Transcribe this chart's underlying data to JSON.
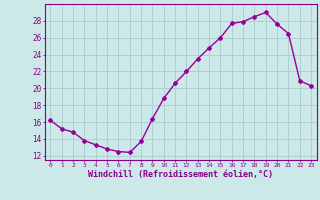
{
  "x": [
    0,
    1,
    2,
    3,
    4,
    5,
    6,
    7,
    8,
    9,
    10,
    11,
    12,
    13,
    14,
    15,
    16,
    17,
    18,
    19,
    20,
    21,
    22,
    23
  ],
  "y": [
    16.2,
    15.2,
    14.8,
    13.8,
    13.3,
    12.8,
    12.5,
    12.4,
    13.7,
    16.4,
    18.8,
    20.6,
    22.0,
    23.5,
    24.8,
    26.0,
    27.7,
    27.9,
    28.5,
    29.0,
    27.6,
    26.5,
    20.9,
    20.3
  ],
  "line_color": "#990099",
  "marker": "D",
  "markersize": 2.0,
  "linewidth": 1.0,
  "xlabel": "Windchill (Refroidissement éolien,°C)",
  "xlabel_fontsize": 6.0,
  "xlim": [
    -0.5,
    23.5
  ],
  "ylim": [
    11.5,
    30.0
  ],
  "yticks": [
    12,
    14,
    16,
    18,
    20,
    22,
    24,
    26,
    28
  ],
  "xticks": [
    0,
    1,
    2,
    3,
    4,
    5,
    6,
    7,
    8,
    9,
    10,
    11,
    12,
    13,
    14,
    15,
    16,
    17,
    18,
    19,
    20,
    21,
    22,
    23
  ],
  "xtick_fontsize": 4.5,
  "ytick_fontsize": 5.5,
  "background_color": "#cce8e8",
  "grid_color": "#aacccc",
  "tick_color": "#880088",
  "spine_color": "#880088"
}
